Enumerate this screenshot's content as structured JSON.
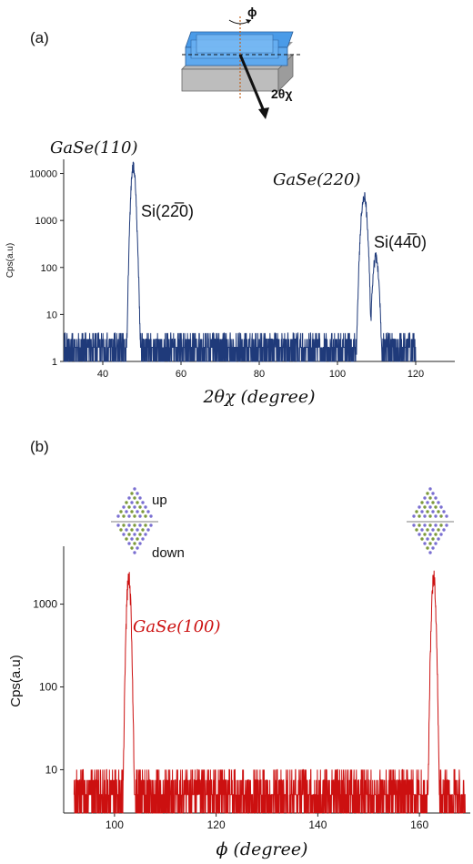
{
  "chart_data": [
    {
      "panel": "(a)",
      "type": "line",
      "title": "",
      "xlabel": "2θχ (degree)",
      "ylabel": "Cps(a.u)",
      "y_scale": "log",
      "xlim": [
        30,
        130
      ],
      "ylim": [
        1,
        20000
      ],
      "x_ticks": [
        40,
        60,
        80,
        100,
        120
      ],
      "y_ticks": [
        1,
        10,
        100,
        1000,
        10000
      ],
      "y_tick_labels": [
        "1",
        "10",
        "100",
        "1000",
        "10000"
      ],
      "line_color": "#1f3a7a",
      "data_range_x": [
        30,
        120
      ],
      "noise_floor": 2,
      "peaks": [
        {
          "x": 47.8,
          "y": 15000,
          "label": "GaSe(110)"
        },
        {
          "x": 48.2,
          "y": 1500,
          "label": "Si(22̅0)"
        },
        {
          "x": 106.8,
          "y": 3500,
          "label": "GaSe(220)"
        },
        {
          "x": 109.8,
          "y": 180,
          "label": "Si(44̅0)"
        }
      ],
      "annotations": [
        "GaSe(110)",
        "Si(22̅0)",
        "GaSe(220)",
        "Si(44̅0)"
      ]
    },
    {
      "panel": "(b)",
      "type": "line",
      "title": "",
      "xlabel": "ϕ (degree)",
      "ylabel": "Cps(a.u)",
      "y_scale": "log",
      "xlim": [
        90,
        170
      ],
      "ylim": [
        3,
        5000
      ],
      "x_ticks": [
        100,
        120,
        140,
        160
      ],
      "y_ticks": [
        10,
        100,
        1000
      ],
      "y_tick_labels": [
        "10",
        "100",
        "1000"
      ],
      "line_color": "#cc1010",
      "data_range_x": [
        92,
        169
      ],
      "noise_floor": 5,
      "peaks": [
        {
          "x": 102.8,
          "y": 2200,
          "label": "GaSe(100)"
        },
        {
          "x": 162.8,
          "y": 2200,
          "label": ""
        }
      ],
      "annotations": [
        "GaSe(100)",
        "up",
        "down"
      ]
    }
  ],
  "schematic": {
    "phi_label": "ϕ",
    "angle_label": "2θχ",
    "top_layer_color": "#4a9be8",
    "bottom_layer_color": "#b8b8b8"
  }
}
